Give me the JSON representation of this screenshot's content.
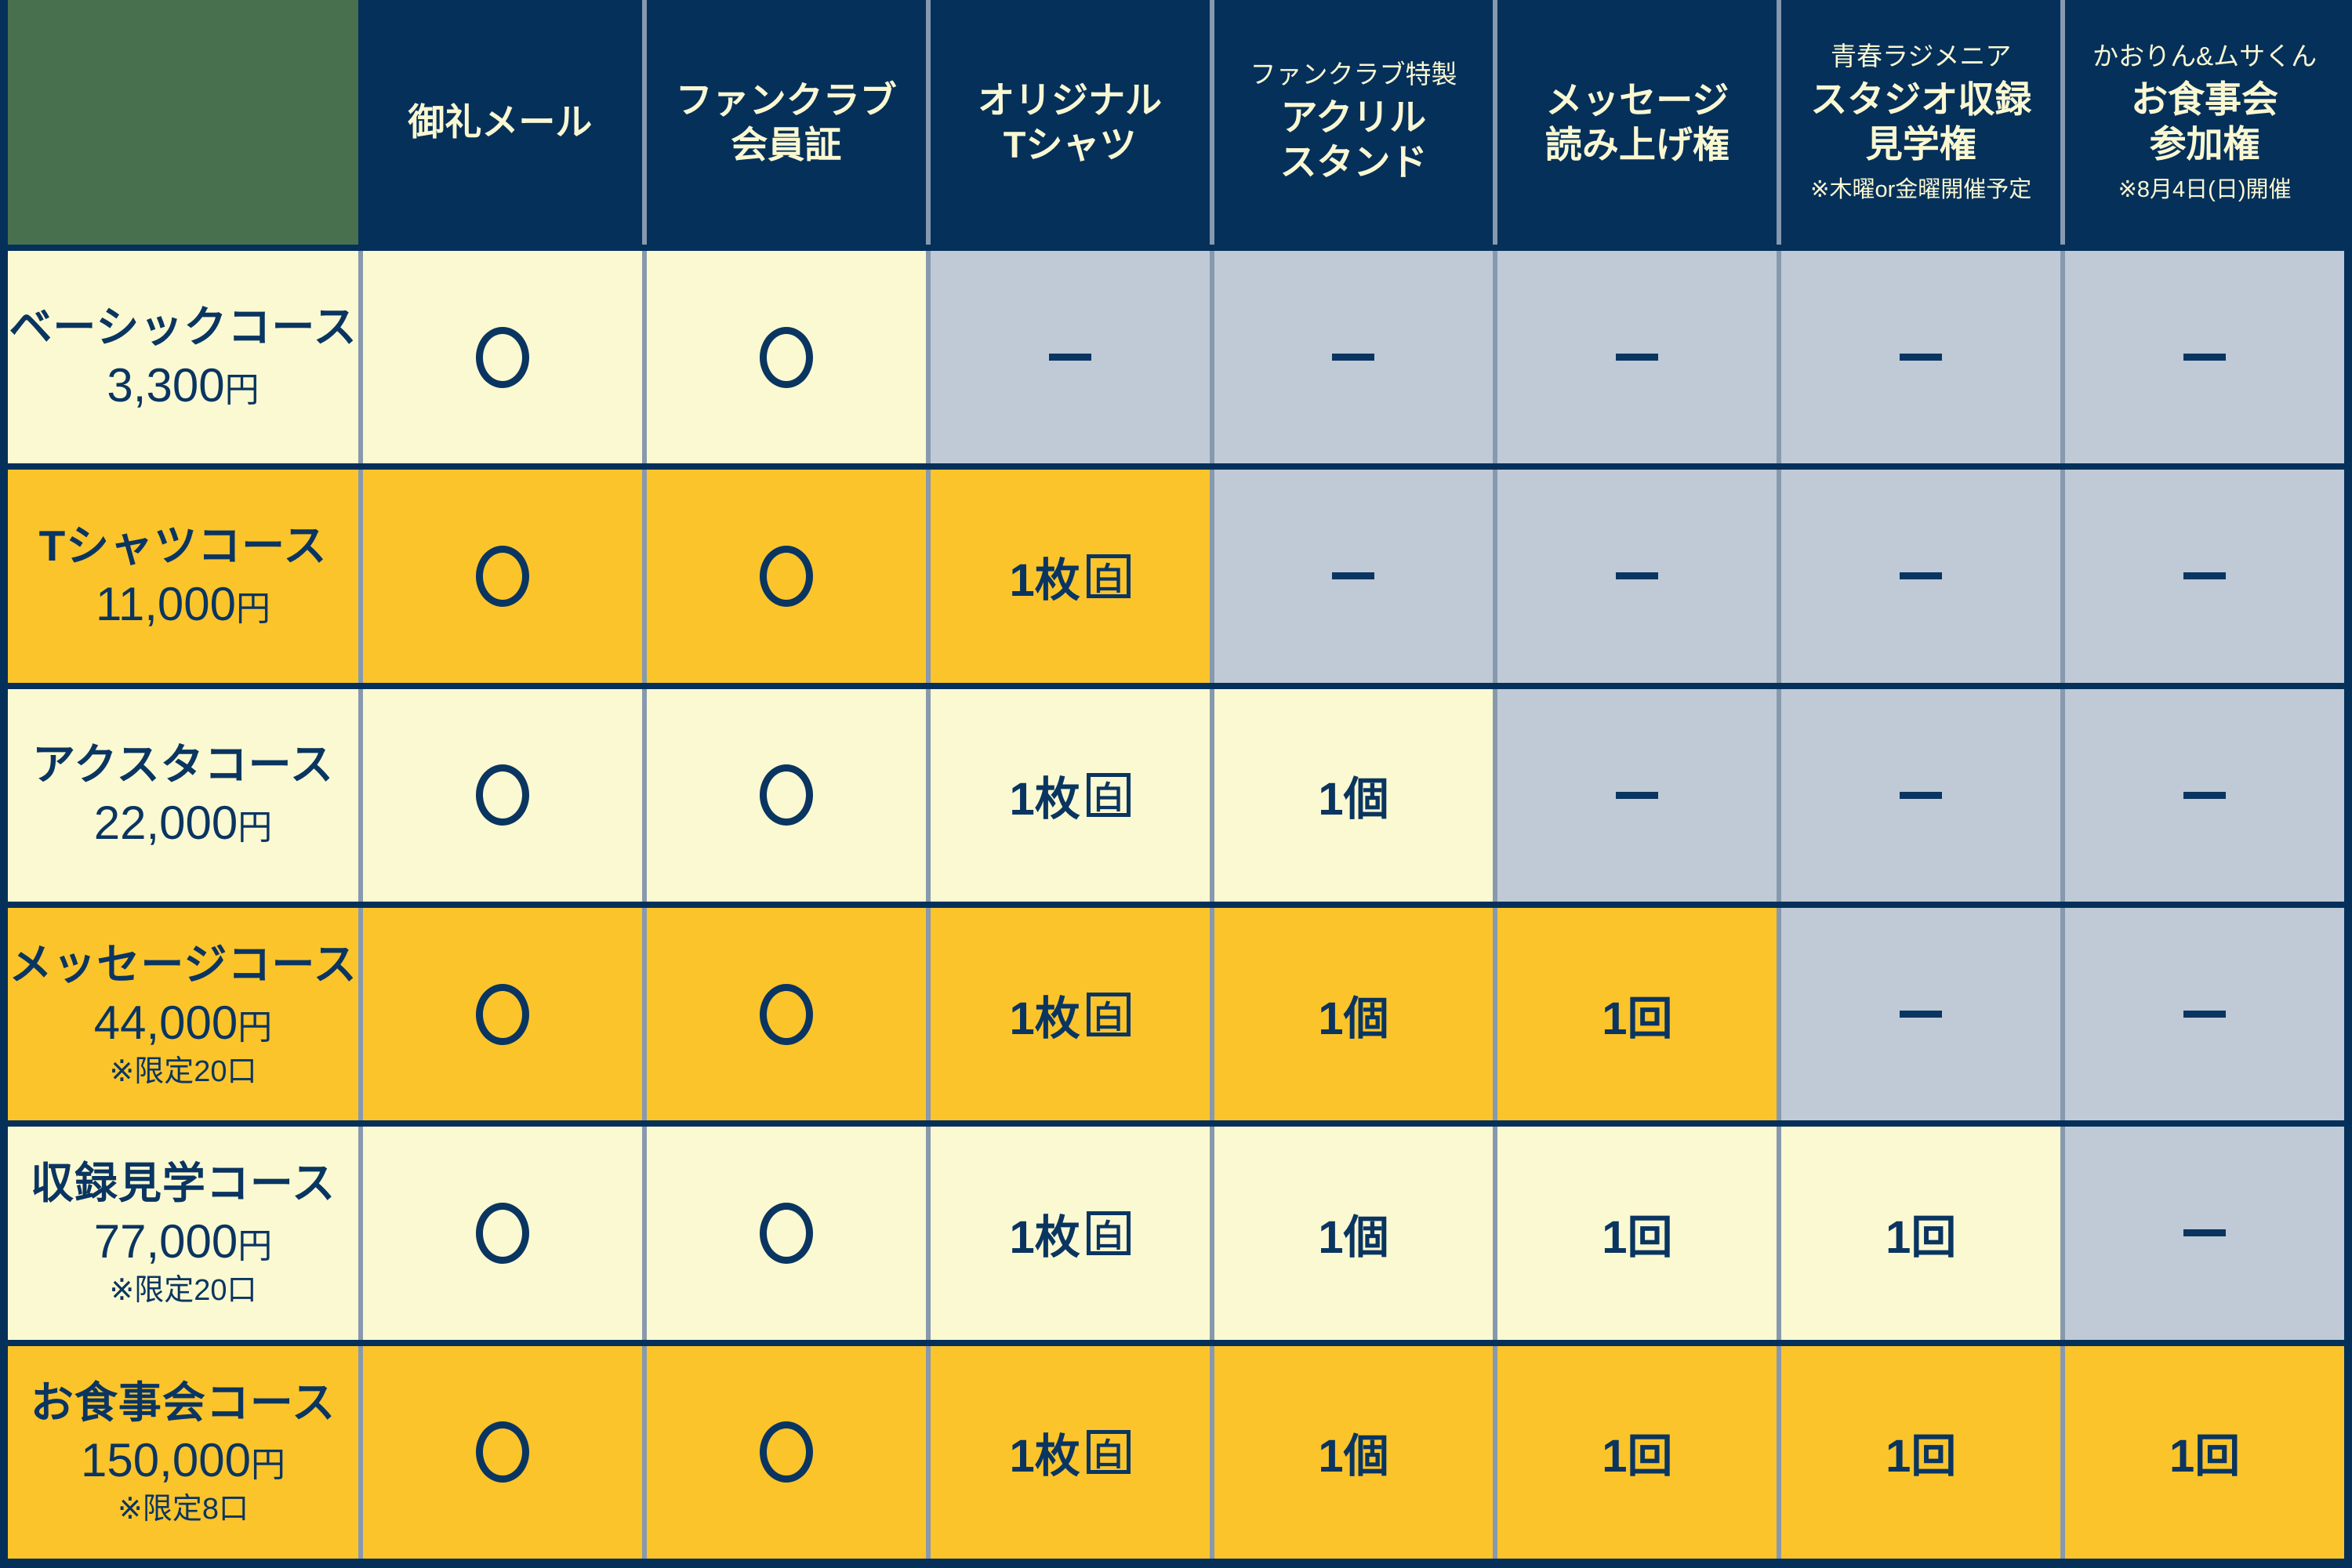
{
  "colors": {
    "navy_background": "#05305A",
    "text_navy": "#0A3561",
    "header_text_cream": "#FAF8D2",
    "row_cream": "#FBF9D1",
    "row_orange": "#FCC42B",
    "excluded_gray": "#BFCAD6",
    "corner_green": "#48704F",
    "grid_line": "#8799AE"
  },
  "table": {
    "corner": "",
    "header": [
      {
        "pre": "",
        "lines": [
          "御礼メール"
        ],
        "note": ""
      },
      {
        "pre": "",
        "lines": [
          "ファンクラブ",
          "会員証"
        ],
        "note": ""
      },
      {
        "pre": "",
        "lines": [
          "オリジナル",
          "Tシャツ"
        ],
        "note": ""
      },
      {
        "pre": "ファンクラブ特製",
        "lines": [
          "アクリル",
          "スタンド"
        ],
        "note": ""
      },
      {
        "pre": "",
        "lines": [
          "メッセージ",
          "読み上げ権"
        ],
        "note": ""
      },
      {
        "pre": "青春ラジメニア",
        "lines": [
          "スタジオ収録",
          "見学権"
        ],
        "note": "※木曜or金曜開催予定"
      },
      {
        "pre": "かおりん&ムサくん",
        "lines": [
          "お食事会",
          "参加権"
        ],
        "note": "※8月4日(日)開催"
      }
    ],
    "tokens": {
      "circle": "○",
      "dash": "—",
      "tshirt_label": "1枚",
      "tshirt_boxed": "白",
      "piece": "1個",
      "time": "1回"
    },
    "rows": [
      {
        "name": "ベーシックコース",
        "amount": "3,300",
        "unit": "円",
        "note": "",
        "tone": "cream",
        "cells": [
          "circle",
          "circle",
          "dash",
          "dash",
          "dash",
          "dash",
          "dash"
        ]
      },
      {
        "name": "Tシャツコース",
        "amount": "11,000",
        "unit": "円",
        "note": "",
        "tone": "orange",
        "cells": [
          "circle",
          "circle",
          "tshirt",
          "dash",
          "dash",
          "dash",
          "dash"
        ]
      },
      {
        "name": "アクスタコース",
        "amount": "22,000",
        "unit": "円",
        "note": "",
        "tone": "cream",
        "cells": [
          "circle",
          "circle",
          "tshirt",
          "piece",
          "dash",
          "dash",
          "dash"
        ]
      },
      {
        "name": "メッセージコース",
        "amount": "44,000",
        "unit": "円",
        "note": "※限定20口",
        "tone": "orange",
        "cells": [
          "circle",
          "circle",
          "tshirt",
          "piece",
          "time",
          "dash",
          "dash"
        ]
      },
      {
        "name": "収録見学コース",
        "amount": "77,000",
        "unit": "円",
        "note": "※限定20口",
        "tone": "cream",
        "cells": [
          "circle",
          "circle",
          "tshirt",
          "piece",
          "time",
          "time",
          "dash"
        ]
      },
      {
        "name": "お食事会コース",
        "amount": "150,000",
        "unit": "円",
        "note": "※限定8口",
        "tone": "orange",
        "cells": [
          "circle",
          "circle",
          "tshirt",
          "piece",
          "time",
          "time",
          "time"
        ]
      }
    ]
  },
  "chart_data": {
    "type": "table",
    "columns": [
      "御礼メール",
      "ファンクラブ会員証",
      "オリジナルTシャツ",
      "ファンクラブ特製アクリルスタンド",
      "メッセージ読み上げ権",
      "青春ラジメニア スタジオ収録見学権 ※木曜or金曜開催予定",
      "かおりん&ムサくん お食事会参加権 ※8月4日(日)開催"
    ],
    "rows": [
      {
        "course": "ベーシックコース",
        "price": "3,300円",
        "limit": "",
        "benefits": [
          "○",
          "○",
          "—",
          "—",
          "—",
          "—",
          "—"
        ]
      },
      {
        "course": "Tシャツコース",
        "price": "11,000円",
        "limit": "",
        "benefits": [
          "○",
          "○",
          "1枚(白)",
          "—",
          "—",
          "—",
          "—"
        ]
      },
      {
        "course": "アクスタコース",
        "price": "22,000円",
        "limit": "",
        "benefits": [
          "○",
          "○",
          "1枚(白)",
          "1個",
          "—",
          "—",
          "—"
        ]
      },
      {
        "course": "メッセージコース",
        "price": "44,000円",
        "limit": "※限定20口",
        "benefits": [
          "○",
          "○",
          "1枚(白)",
          "1個",
          "1回",
          "—",
          "—"
        ]
      },
      {
        "course": "収録見学コース",
        "price": "77,000円",
        "limit": "※限定20口",
        "benefits": [
          "○",
          "○",
          "1枚(白)",
          "1個",
          "1回",
          "1回",
          "—"
        ]
      },
      {
        "course": "お食事会コース",
        "price": "150,000円",
        "limit": "※限定8口",
        "benefits": [
          "○",
          "○",
          "1枚(白)",
          "1個",
          "1回",
          "1回",
          "1回"
        ]
      }
    ]
  }
}
